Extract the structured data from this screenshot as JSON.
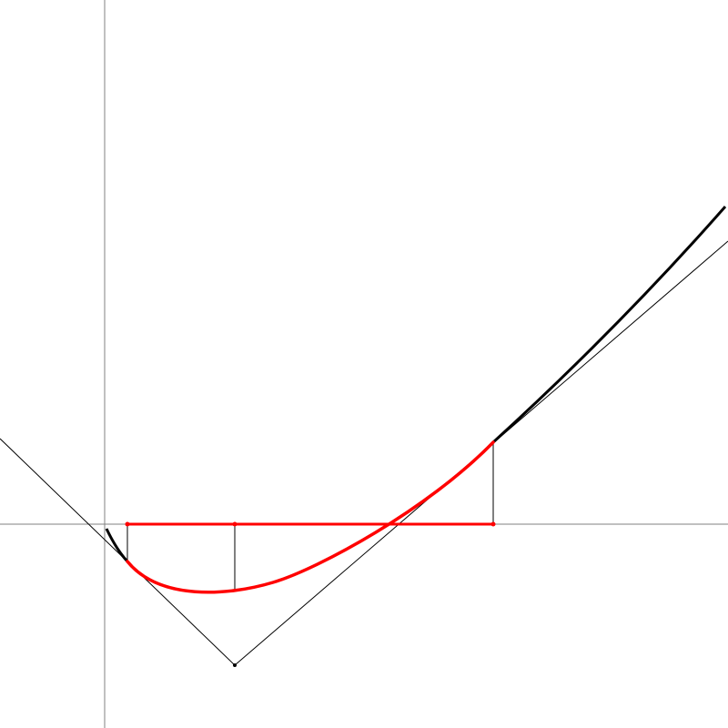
{
  "colors": {
    "background": "#ffffff",
    "axes": "#808080",
    "curve": "#000000",
    "highlight": "#ff0000",
    "construction": "#000000"
  },
  "figure": {
    "description_free": true,
    "axes": [
      "x-axis",
      "y-axis"
    ],
    "elements": [
      "black-curve",
      "red-curve-segment",
      "red-horizontal-segment",
      "left-tangent-line",
      "right-tangent-line",
      "vertex-point",
      "vertical-drop-lines"
    ]
  }
}
